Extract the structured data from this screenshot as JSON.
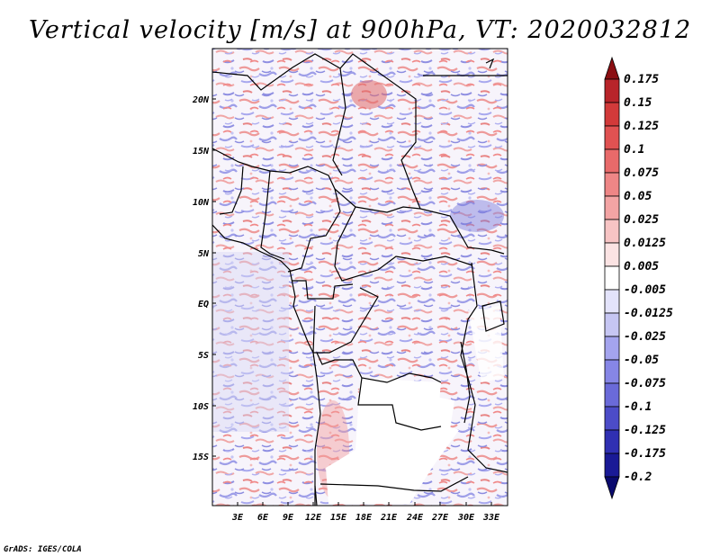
{
  "title": "Vertical velocity [m/s] at 900hPa, VT: 2020032812",
  "credit": "GrADS: IGES/COLA",
  "map": {
    "lat_labels": [
      "20N",
      "15N",
      "10N",
      "5N",
      "EQ",
      "5S",
      "10S",
      "15S"
    ],
    "lon_labels": [
      "3E",
      "6E",
      "9E",
      "12E",
      "15E",
      "18E",
      "21E",
      "24E",
      "27E",
      "30E",
      "33E"
    ]
  },
  "colorbar": {
    "labels": [
      "0.175",
      "0.15",
      "0.125",
      "0.1",
      "0.075",
      "0.05",
      "0.025",
      "0.0125",
      "0.005",
      "-0.005",
      "-0.0125",
      "-0.025",
      "-0.05",
      "-0.075",
      "-0.1",
      "-0.125",
      "-0.175",
      "-0.2"
    ],
    "colors": [
      "#8b0e12",
      "#b8242a",
      "#d23a3a",
      "#e05252",
      "#e86a6a",
      "#ee8686",
      "#f3a4a4",
      "#f7c4c4",
      "#fbe3e3",
      "#ffffff",
      "#e3e3fb",
      "#c6c6f3",
      "#a4a4ee",
      "#8686e6",
      "#6a6ad9",
      "#4c4cc8",
      "#3030b2",
      "#1a1a96",
      "#0a0a6e"
    ]
  }
}
